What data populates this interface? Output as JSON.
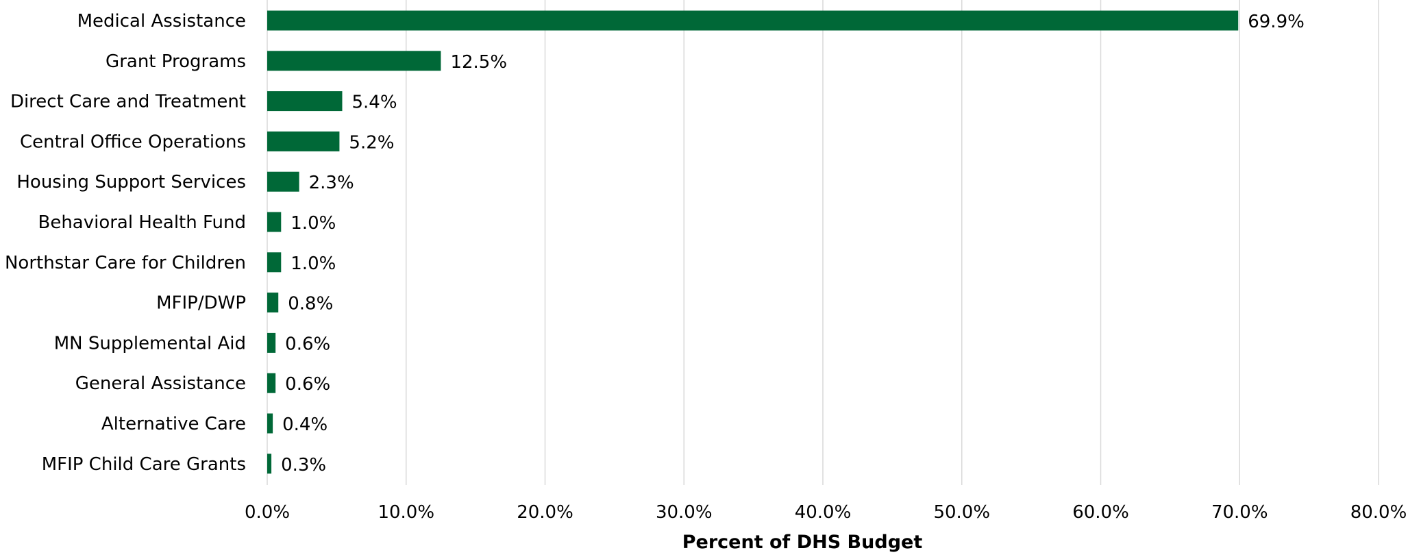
{
  "chart_data": {
    "type": "bar",
    "orientation": "horizontal",
    "categories": [
      "Medical Assistance",
      "Grant Programs",
      "Direct Care and Treatment",
      "Central Office Operations",
      "Housing Support Services",
      "Behavioral Health Fund",
      "Northstar Care for Children",
      "MFIP/DWP",
      "MN Supplemental Aid",
      "General Assistance",
      "Alternative Care",
      "MFIP Child Care Grants"
    ],
    "values": [
      69.9,
      12.5,
      5.4,
      5.2,
      2.3,
      1.0,
      1.0,
      0.8,
      0.6,
      0.6,
      0.4,
      0.3
    ],
    "value_labels": [
      "69.9%",
      "12.5%",
      "5.4%",
      "5.2%",
      "2.3%",
      "1.0%",
      "1.0%",
      "0.8%",
      "0.6%",
      "0.6%",
      "0.4%",
      "0.3%"
    ],
    "xlabel": "Percent of DHS Budget",
    "ylabel": "",
    "xlim": [
      0,
      80
    ],
    "xticks": [
      0,
      10,
      20,
      30,
      40,
      50,
      60,
      70,
      80
    ],
    "xtick_labels": [
      "0.0%",
      "10.0%",
      "20.0%",
      "30.0%",
      "40.0%",
      "50.0%",
      "60.0%",
      "70.0%",
      "80.0%"
    ],
    "grid": "vertical",
    "legend": "none",
    "bar_color": "#006837",
    "grid_color": "#d9d9d9"
  }
}
